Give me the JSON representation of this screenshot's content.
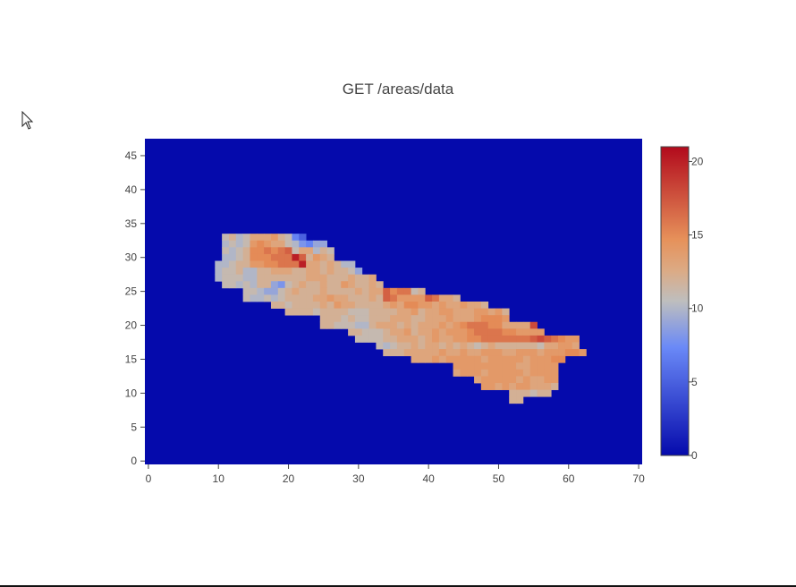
{
  "chart_data": {
    "type": "heatmap",
    "title": "GET /areas/data",
    "xlabel": "",
    "ylabel": "",
    "xlim": [
      -0.5,
      70.5
    ],
    "ylim": [
      -0.5,
      47.5
    ],
    "x_ticks": [
      "0",
      "10",
      "20",
      "30",
      "40",
      "50",
      "60",
      "70"
    ],
    "y_ticks": [
      "0",
      "5",
      "10",
      "15",
      "20",
      "25",
      "30",
      "35",
      "40",
      "45"
    ],
    "colorbar": {
      "range": [
        0,
        21
      ],
      "ticks": [
        "0",
        "5",
        "10",
        "15",
        "20"
      ],
      "colorscale": [
        [
          0.0,
          "#050aac"
        ],
        [
          0.35,
          "#6a89f7"
        ],
        [
          0.5,
          "#bebebe"
        ],
        [
          0.6,
          "#dcaa84"
        ],
        [
          0.7,
          "#e6915a"
        ],
        [
          1.0,
          "#b20a1c"
        ]
      ]
    },
    "background_value": 0,
    "region_rows": [
      {
        "y": 33,
        "x_start": 11,
        "values": [
          11,
          12,
          10,
          11,
          13,
          13,
          13,
          14,
          12,
          11,
          7,
          5
        ]
      },
      {
        "y": 32,
        "x_start": 11,
        "values": [
          10,
          11,
          10,
          11,
          14,
          15,
          14,
          13,
          13,
          11,
          10,
          8,
          7,
          9,
          9
        ]
      },
      {
        "y": 31,
        "x_start": 11,
        "values": [
          11,
          10,
          11,
          12,
          15,
          15,
          16,
          15,
          16,
          17,
          11,
          13,
          13,
          10,
          12,
          11
        ]
      },
      {
        "y": 30,
        "x_start": 11,
        "values": [
          10,
          10,
          11,
          12,
          15,
          15,
          15,
          16,
          16,
          16,
          20,
          17,
          12,
          14,
          13,
          12
        ]
      },
      {
        "y": 29,
        "x_start": 10,
        "values": [
          10,
          10,
          11,
          12,
          12,
          14,
          14,
          15,
          15,
          16,
          16,
          16,
          20,
          13,
          13,
          12,
          13,
          12,
          10,
          10
        ]
      },
      {
        "y": 28,
        "x_start": 10,
        "values": [
          10,
          11,
          11,
          12,
          10,
          10,
          12,
          12,
          13,
          13,
          13,
          12,
          12,
          13,
          13,
          12,
          13,
          12,
          12,
          11,
          9
        ]
      },
      {
        "y": 27,
        "x_start": 10,
        "values": [
          10,
          11,
          11,
          11,
          10,
          10,
          12,
          12,
          12,
          12,
          12,
          12,
          12,
          13,
          13,
          13,
          12,
          12,
          12,
          13,
          12,
          12,
          13
        ]
      },
      {
        "y": 26,
        "x_start": 11,
        "values": [
          11,
          11,
          10,
          11,
          10,
          12,
          12,
          9,
          8,
          11,
          12,
          13,
          12,
          12,
          13,
          12,
          12,
          14,
          13,
          12,
          12,
          13,
          12
        ]
      },
      {
        "y": 25,
        "x_start": 14,
        "values": [
          11,
          11,
          10,
          9,
          9,
          11,
          12,
          13,
          12,
          12,
          12,
          13,
          12,
          12,
          12,
          12,
          13,
          12,
          13,
          13,
          17,
          15,
          16,
          16,
          11,
          12
        ]
      },
      {
        "y": 24,
        "x_start": 14,
        "values": [
          11,
          10,
          10,
          11,
          10,
          11,
          12,
          12,
          12,
          12,
          13,
          13,
          14,
          13,
          13,
          12,
          12,
          12,
          13,
          12,
          17,
          16,
          14,
          14,
          14,
          14,
          17,
          16,
          13,
          13,
          12
        ]
      },
      {
        "y": 23,
        "x_start": 18,
        "values": [
          12,
          12,
          11,
          12,
          12,
          12,
          12,
          13,
          12,
          14,
          13,
          13,
          12,
          12,
          12,
          12,
          13,
          14,
          13,
          15,
          15,
          14,
          14,
          13,
          14,
          13,
          13,
          14,
          13,
          13,
          12
        ]
      },
      {
        "y": 22,
        "x_start": 20,
        "values": [
          12,
          12,
          12,
          12,
          11,
          12,
          12,
          12,
          12,
          11,
          11,
          11,
          12,
          12,
          12,
          12,
          13,
          13,
          14,
          12,
          13,
          13,
          14,
          14,
          13,
          13,
          13,
          14,
          14,
          13,
          14,
          12
        ]
      },
      {
        "y": 21,
        "x_start": 25,
        "values": [
          12,
          12,
          12,
          11,
          12,
          11,
          11,
          12,
          12,
          12,
          13,
          13,
          13,
          12,
          12,
          13,
          13,
          13,
          14,
          13,
          13,
          13,
          14,
          15,
          15,
          15,
          14
        ]
      },
      {
        "y": 20,
        "x_start": 25,
        "values": [
          12,
          12,
          11,
          11,
          11,
          10,
          10,
          12,
          13,
          13,
          13,
          12,
          13,
          12,
          13,
          13,
          13,
          14,
          13,
          14,
          15,
          16,
          16,
          16,
          15,
          15,
          13,
          13,
          13,
          13,
          18
        ]
      },
      {
        "y": 19,
        "x_start": 29,
        "values": [
          12,
          12,
          11,
          11,
          11,
          12,
          13,
          13,
          14,
          12,
          13,
          13,
          14,
          13,
          14,
          14,
          14,
          15,
          16,
          16,
          16,
          16,
          15,
          15,
          14,
          14,
          14,
          14
        ]
      },
      {
        "y": 18,
        "x_start": 30,
        "values": [
          11,
          11,
          11,
          11,
          12,
          12,
          13,
          13,
          13,
          12,
          13,
          14,
          13,
          13,
          14,
          14,
          15,
          15,
          16,
          16,
          16,
          16,
          16,
          16,
          16,
          17,
          18,
          17,
          16,
          15,
          14,
          14
        ]
      },
      {
        "y": 17,
        "x_start": 33,
        "values": [
          11,
          10,
          11,
          12,
          12,
          13,
          12,
          13,
          13,
          12,
          13,
          12,
          13,
          12,
          11,
          12,
          13,
          12,
          12,
          12,
          12,
          12,
          12,
          11,
          13,
          13,
          14,
          14,
          13
        ]
      },
      {
        "y": 16,
        "x_start": 34,
        "values": [
          12,
          12,
          12,
          13,
          13,
          13,
          13,
          13,
          14,
          13,
          13,
          14,
          13,
          13,
          14,
          14,
          14,
          13,
          13,
          14,
          14,
          14,
          13,
          14,
          14,
          14,
          15,
          15,
          14
        ]
      },
      {
        "y": 15,
        "x_start": 38,
        "values": [
          13,
          13,
          13,
          14,
          13,
          14,
          14,
          14,
          14,
          14,
          13,
          14,
          14,
          14,
          14,
          14,
          13,
          14,
          14,
          14,
          15,
          15
        ]
      },
      {
        "y": 14,
        "x_start": 44,
        "values": [
          14,
          14,
          14,
          14,
          14,
          14,
          14,
          14,
          14,
          13,
          13,
          14,
          14,
          14,
          14
        ]
      },
      {
        "y": 13,
        "x_start": 44,
        "values": [
          13,
          14,
          14,
          14,
          13,
          14,
          14,
          14,
          14,
          14,
          13,
          14,
          14,
          14,
          14
        ]
      },
      {
        "y": 12,
        "x_start": 47,
        "values": [
          13,
          14,
          14,
          14,
          14,
          14,
          13,
          14,
          13,
          13,
          14,
          14
        ]
      },
      {
        "y": 11,
        "x_start": 48,
        "values": [
          14,
          14,
          13,
          14,
          13,
          14,
          14,
          13,
          13,
          13,
          12
        ]
      },
      {
        "y": 10,
        "x_start": 52,
        "values": [
          12,
          12,
          12,
          11,
          12,
          12
        ]
      },
      {
        "y": 9,
        "x_start": 52,
        "values": [
          12,
          12
        ]
      }
    ]
  }
}
